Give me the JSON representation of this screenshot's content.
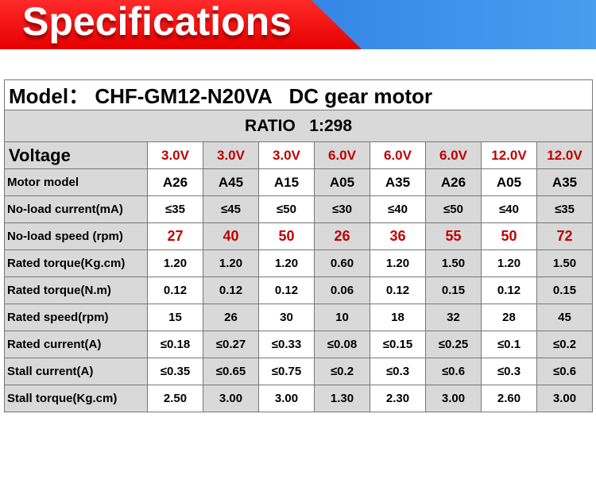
{
  "header": {
    "title": "Specifications"
  },
  "table": {
    "model": "Model： CHF-GM12-N20VA   DC gear motor",
    "ratio": "RATIO   1:298",
    "voltage_label": "Voltage",
    "voltages": [
      "3.0V",
      "3.0V",
      "3.0V",
      "6.0V",
      "6.0V",
      "6.0V",
      "12.0V",
      "12.0V"
    ],
    "rows": [
      {
        "label": "Motor model",
        "values": [
          "A26",
          "A45",
          "A15",
          "A05",
          "A35",
          "A26",
          "A05",
          "A35"
        ]
      },
      {
        "label": "No-load current(mA)",
        "values": [
          "≤35",
          "≤45",
          "≤50",
          "≤30",
          "≤40",
          "≤50",
          "≤40",
          "≤35"
        ]
      },
      {
        "label": "No-load speed (rpm)",
        "values": [
          "27",
          "40",
          "50",
          "26",
          "36",
          "55",
          "50",
          "72"
        ]
      },
      {
        "label": "Rated torque(Kg.cm)",
        "values": [
          "1.20",
          "1.20",
          "1.20",
          "0.60",
          "1.20",
          "1.50",
          "1.20",
          "1.50"
        ]
      },
      {
        "label": "Rated torque(N.m)",
        "values": [
          "0.12",
          "0.12",
          "0.12",
          "0.06",
          "0.12",
          "0.15",
          "0.12",
          "0.15"
        ]
      },
      {
        "label": "Rated speed(rpm)",
        "values": [
          "15",
          "26",
          "30",
          "10",
          "18",
          "32",
          "28",
          "45"
        ]
      },
      {
        "label": "Rated current(A)",
        "values": [
          "≤0.18",
          "≤0.27",
          "≤0.33",
          "≤0.08",
          "≤0.15",
          "≤0.25",
          "≤0.1",
          "≤0.2"
        ]
      },
      {
        "label": "Stall current(A)",
        "values": [
          "≤0.35",
          "≤0.65",
          "≤0.75",
          "≤0.2",
          "≤0.3",
          "≤0.6",
          "≤0.3",
          "≤0.6"
        ]
      },
      {
        "label": "Stall torque(Kg.cm)",
        "values": [
          "2.50",
          "3.00",
          "3.00",
          "1.30",
          "2.30",
          "3.00",
          "2.60",
          "3.00"
        ]
      }
    ]
  }
}
